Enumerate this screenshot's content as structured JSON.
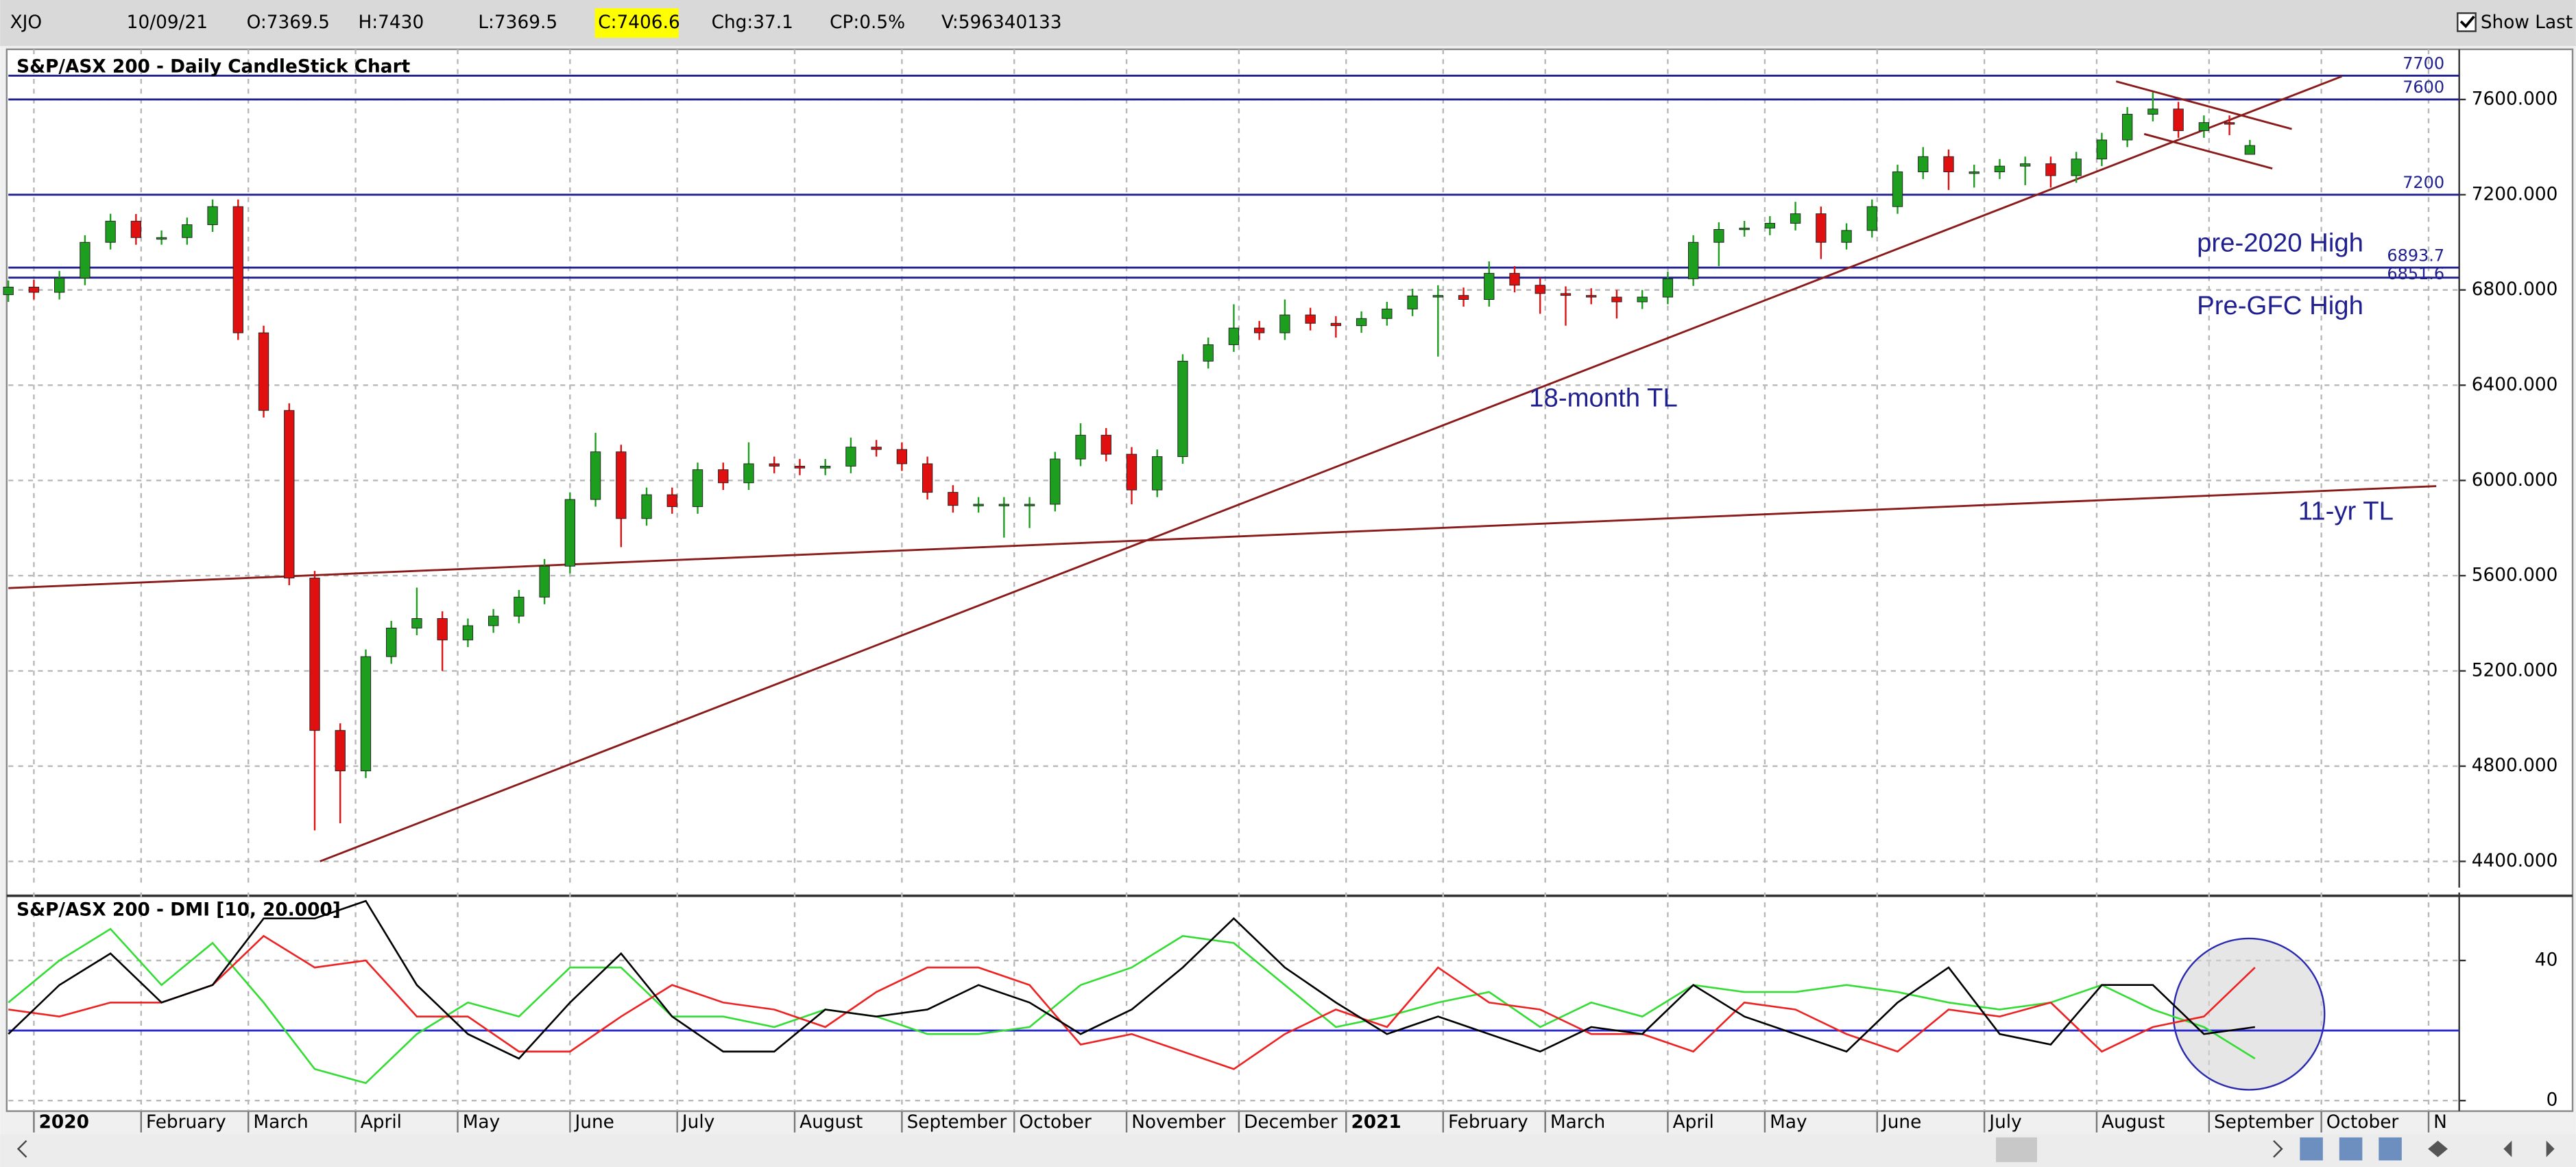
{
  "toolbar": {
    "symbol": "XJO",
    "date": "10/09/21",
    "open": "O:7369.5",
    "high": "H:7430",
    "low": "L:7369.5",
    "close": "C:7406.6",
    "change": "Chg:37.1",
    "change_pct": "CP:0.5%",
    "volume": "V:596340133",
    "show_last": "Show Last"
  },
  "chart_data": [
    {
      "type": "candlestick",
      "title": "S&P/ASX 200 - Daily CandleStick Chart",
      "up_color": "#1e9e1e",
      "down_color": "#e01010",
      "x": [
        0,
        5,
        10,
        15,
        20,
        25,
        30,
        35,
        40,
        45,
        50,
        55,
        60,
        65,
        70,
        75,
        80,
        85,
        90,
        95,
        100,
        105,
        110,
        115,
        120,
        125,
        130,
        135,
        140,
        145,
        150,
        155,
        160,
        165,
        170,
        175,
        180,
        185,
        190,
        195,
        200,
        205,
        210,
        215,
        220,
        225,
        230,
        235,
        240,
        245,
        250,
        255,
        260,
        265,
        270,
        275,
        280,
        285,
        290,
        295,
        300,
        305,
        310,
        315,
        320,
        325,
        330,
        335,
        340,
        345,
        350,
        355,
        360,
        365,
        370,
        375,
        380,
        385,
        390,
        395,
        400,
        405,
        410,
        415,
        420,
        425,
        430,
        435,
        439
      ],
      "open": [
        6780,
        6812,
        6790,
        6850,
        7000,
        7089,
        7020,
        7020,
        7074,
        7150,
        6620,
        6294,
        5590,
        4950,
        4780,
        5260,
        5380,
        5420,
        5330,
        5390,
        5430,
        5510,
        5640,
        5920,
        6120,
        5840,
        5940,
        5890,
        6045,
        5990,
        6070,
        6060,
        6052,
        6060,
        6140,
        6130,
        6070,
        5950,
        5895,
        5900,
        5900,
        5900,
        6090,
        6190,
        6110,
        5960,
        6100,
        6501,
        6570,
        6640,
        6620,
        6695,
        6660,
        6650,
        6680,
        6720,
        6775,
        6777,
        6760,
        6870,
        6820,
        6785,
        6777,
        6770,
        6750,
        6770,
        6847,
        7000,
        7054,
        7060,
        7080,
        7120,
        7000,
        7050,
        7150,
        7296,
        7360,
        7296,
        7296,
        7320,
        7330,
        7280,
        7350,
        7430,
        7538,
        7560,
        7469,
        7503,
        7369.5
      ],
      "high": [
        6840,
        6842,
        6880,
        7030,
        7120,
        7119,
        7050,
        7104,
        7180,
        7180,
        6650,
        6324,
        5620,
        4980,
        5290,
        5410,
        5550,
        5450,
        5420,
        5460,
        5540,
        5670,
        5950,
        6200,
        6150,
        5970,
        5970,
        6075,
        6075,
        6160,
        6100,
        6090,
        6090,
        6180,
        6170,
        6160,
        6100,
        5980,
        5930,
        5930,
        5930,
        6120,
        6240,
        6220,
        6140,
        6130,
        6530,
        6600,
        6740,
        6670,
        6760,
        6725,
        6690,
        6710,
        6750,
        6805,
        6820,
        6810,
        6920,
        6900,
        6850,
        6815,
        6807,
        6800,
        6800,
        6877,
        7030,
        7084,
        7090,
        7110,
        7170,
        7150,
        7080,
        7180,
        7326,
        7400,
        7390,
        7326,
        7350,
        7360,
        7360,
        7380,
        7460,
        7568,
        7630,
        7590,
        7533,
        7533,
        7430
      ],
      "low": [
        6750,
        6760,
        6760,
        6820,
        6970,
        6990,
        6990,
        6990,
        7044,
        6590,
        6264,
        5560,
        4530,
        4560,
        4750,
        5230,
        5350,
        5200,
        5300,
        5360,
        5400,
        5480,
        5610,
        5890,
        5720,
        5810,
        5860,
        5860,
        5960,
        5960,
        6030,
        6022,
        6022,
        6030,
        6100,
        6040,
        5920,
        5865,
        5865,
        5760,
        5800,
        5870,
        6060,
        6080,
        5900,
        5930,
        6070,
        6470,
        6540,
        6590,
        6590,
        6630,
        6600,
        6620,
        6650,
        6690,
        6520,
        6730,
        6730,
        6790,
        6700,
        6650,
        6740,
        6680,
        6720,
        6740,
        6817,
        6900,
        7024,
        7030,
        7050,
        6930,
        6970,
        7020,
        7120,
        7266,
        7220,
        7230,
        7266,
        7240,
        7230,
        7250,
        7320,
        7400,
        7508,
        7439,
        7439,
        7450,
        7369.5
      ],
      "close": [
        6812,
        6790,
        6850,
        7000,
        7089,
        7020,
        7020,
        7074,
        7150,
        6620,
        6294,
        5590,
        4950,
        4780,
        5260,
        5380,
        5420,
        5330,
        5390,
        5430,
        5510,
        5640,
        5920,
        6120,
        5840,
        5940,
        5890,
        6045,
        5990,
        6070,
        6060,
        6052,
        6060,
        6140,
        6130,
        6070,
        5950,
        5895,
        5900,
        5900,
        5900,
        6090,
        6190,
        6110,
        5960,
        6100,
        6501,
        6570,
        6640,
        6620,
        6695,
        6660,
        6650,
        6680,
        6720,
        6775,
        6777,
        6760,
        6870,
        6820,
        6785,
        6777,
        6770,
        6750,
        6770,
        6847,
        7000,
        7054,
        7060,
        7080,
        7120,
        7000,
        7050,
        7150,
        7296,
        7360,
        7296,
        7296,
        7320,
        7330,
        7280,
        7350,
        7430,
        7538,
        7560,
        7469,
        7503,
        7500,
        7406.6
      ],
      "xlim": [
        0,
        480
      ],
      "ylim": [
        4290,
        7790
      ],
      "yticks": [
        {
          "value": 4400,
          "label": "4400.000"
        },
        {
          "value": 4800,
          "label": "4800.000"
        },
        {
          "value": 5200,
          "label": "5200.000"
        },
        {
          "value": 5600,
          "label": "5600.000"
        },
        {
          "value": 6000,
          "label": "6000.000"
        },
        {
          "value": 6400,
          "label": "6400.000"
        },
        {
          "value": 6800,
          "label": "6800.000"
        },
        {
          "value": 7200,
          "label": "7200.000"
        },
        {
          "value": 7600,
          "label": "7600.000"
        }
      ],
      "grid": true,
      "level_color": "#1f1f8f",
      "trend_color": "#8b1a1a",
      "levels": [
        {
          "value": 7700
        },
        {
          "value": 7600
        },
        {
          "value": 7200
        },
        {
          "value": 6893.7,
          "note": "pre-2020 High"
        },
        {
          "value": 6851.6,
          "note": "Pre-GFC High"
        }
      ],
      "trendlines": [
        {
          "label": "18-month TL",
          "x": [
            61,
            457
          ],
          "y": [
            4400,
            7697
          ]
        },
        {
          "label": "11-yr TL",
          "x": [
            0,
            475.5
          ],
          "y": [
            5548,
            5976
          ]
        },
        {
          "x": [
            412.8,
            447.2
          ],
          "y": [
            7676,
            7476
          ]
        },
        {
          "x": [
            418.3,
            443.4
          ],
          "y": [
            7455,
            7310
          ]
        }
      ]
    },
    {
      "type": "line",
      "title": "S&P/ASX 200 - DMI [10, 20.000]",
      "x": [
        0,
        10,
        20,
        30,
        40,
        50,
        60,
        70,
        80,
        90,
        100,
        110,
        120,
        130,
        140,
        150,
        160,
        170,
        180,
        190,
        200,
        210,
        220,
        230,
        240,
        250,
        260,
        270,
        280,
        290,
        300,
        310,
        320,
        330,
        340,
        350,
        360,
        370,
        380,
        390,
        400,
        410,
        420,
        430,
        440
      ],
      "series": [
        {
          "color": "#33dd33",
          "values": [
            28,
            40,
            49,
            33,
            45,
            28,
            9,
            5,
            19,
            28,
            24,
            38,
            38,
            24,
            24,
            21,
            26,
            24,
            19,
            19,
            21,
            33,
            38,
            47,
            45,
            33,
            21,
            24,
            28,
            31,
            21,
            28,
            24,
            33,
            31,
            31,
            33,
            31,
            28,
            26,
            28,
            33,
            26,
            21,
            12
          ]
        },
        {
          "color": "#ee2222",
          "values": [
            26,
            24,
            28,
            28,
            33,
            47,
            38,
            40,
            24,
            24,
            14,
            14,
            24,
            33,
            28,
            26,
            21,
            31,
            38,
            38,
            33,
            16,
            19,
            14,
            9,
            19,
            26,
            21,
            38,
            28,
            26,
            19,
            19,
            14,
            28,
            26,
            19,
            14,
            26,
            24,
            28,
            14,
            21,
            24,
            38
          ]
        },
        {
          "color": "#000000",
          "values": [
            19,
            33,
            42,
            28,
            33,
            52,
            52,
            57,
            33,
            19,
            12,
            28,
            42,
            24,
            14,
            14,
            26,
            24,
            26,
            33,
            28,
            19,
            26,
            38,
            52,
            38,
            28,
            19,
            24,
            19,
            14,
            21,
            19,
            33,
            24,
            19,
            14,
            28,
            38,
            19,
            16,
            33,
            33,
            19,
            21
          ]
        }
      ],
      "hline": 20,
      "hline_color": "#2a2ad0",
      "xlim": [
        0,
        480
      ],
      "ylim": [
        -3,
        58
      ],
      "yticks": [
        0,
        40
      ],
      "grid": true,
      "xticks": [
        {
          "value": 5,
          "label": "2020"
        },
        {
          "value": 26,
          "label": "February"
        },
        {
          "value": 47,
          "label": "March"
        },
        {
          "value": 68,
          "label": "April"
        },
        {
          "value": 88,
          "label": "May"
        },
        {
          "value": 110,
          "label": "June"
        },
        {
          "value": 131,
          "label": "July"
        },
        {
          "value": 154,
          "label": "August"
        },
        {
          "value": 175,
          "label": "September"
        },
        {
          "value": 197,
          "label": "October"
        },
        {
          "value": 219,
          "label": "November"
        },
        {
          "value": 241,
          "label": "December"
        },
        {
          "value": 262,
          "label": "2021"
        },
        {
          "value": 281,
          "label": "February"
        },
        {
          "value": 301,
          "label": "March"
        },
        {
          "value": 325,
          "label": "April"
        },
        {
          "value": 344,
          "label": "May"
        },
        {
          "value": 366,
          "label": "June"
        },
        {
          "value": 387,
          "label": "July"
        },
        {
          "value": 409,
          "label": "August"
        },
        {
          "value": 431,
          "label": "September"
        },
        {
          "value": 453,
          "label": "October"
        },
        {
          "value": 474,
          "label": "N"
        }
      ]
    }
  ]
}
